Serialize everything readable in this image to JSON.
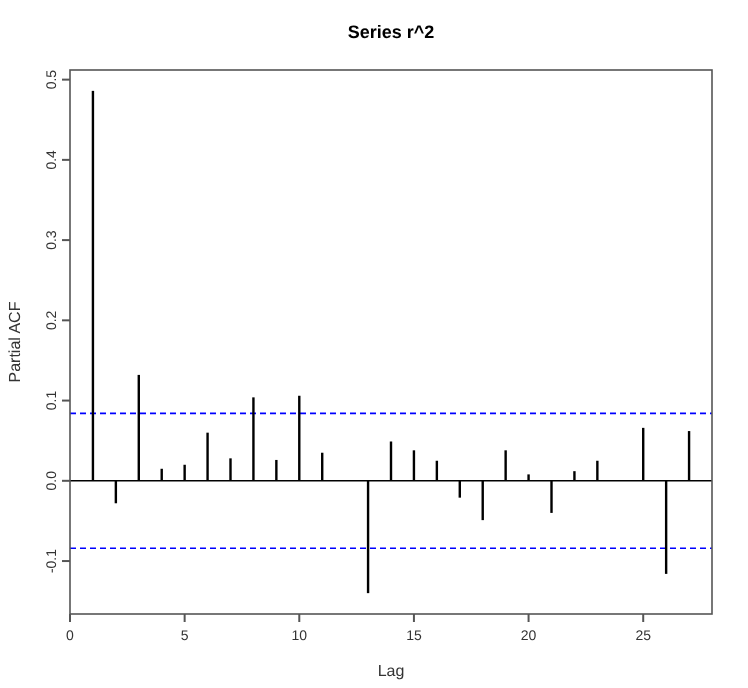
{
  "chart_data": {
    "type": "bar",
    "title": "Series  r^2",
    "xlabel": "Lag",
    "ylabel": "Partial ACF",
    "x": [
      1,
      2,
      3,
      4,
      5,
      6,
      7,
      8,
      9,
      10,
      11,
      12,
      13,
      14,
      15,
      16,
      17,
      18,
      19,
      20,
      21,
      22,
      23,
      24,
      25,
      26,
      27
    ],
    "series": [
      {
        "color": "#000000",
        "values": [
          0.486,
          -0.028,
          0.132,
          0.015,
          0.02,
          0.06,
          0.028,
          0.104,
          0.026,
          0.106,
          0.035,
          0,
          -0.14,
          0.049,
          0.038,
          0.025,
          -0.021,
          -0.049,
          0.038,
          0.008,
          -0.04,
          0.012,
          0.025,
          0,
          0.066,
          -0.116,
          0.062
        ]
      }
    ],
    "xlim": [
      0,
      28
    ],
    "xticks": [
      0,
      5,
      10,
      15,
      20,
      25
    ],
    "ylim": [
      -0.166,
      0.512
    ],
    "yticks": [
      {
        "value": -0.1,
        "label": "-0.1"
      },
      {
        "value": 0,
        "label": "0.0"
      },
      {
        "value": 0.1,
        "label": "0.1"
      },
      {
        "value": 0.2,
        "label": "0.2"
      },
      {
        "value": 0.3,
        "label": "0.3"
      },
      {
        "value": 0.4,
        "label": "0.4"
      },
      {
        "value": 0.5,
        "label": "0.5"
      }
    ],
    "ref_lines": [
      {
        "axis": "y",
        "value": 0,
        "color": "#000000",
        "line_style": "solid"
      },
      {
        "axis": "y",
        "value": 0.084,
        "color": "#0000ff",
        "line_style": "dashed"
      },
      {
        "axis": "y",
        "value": -0.084,
        "color": "#0000ff",
        "line_style": "dashed"
      }
    ],
    "grid": false
  }
}
